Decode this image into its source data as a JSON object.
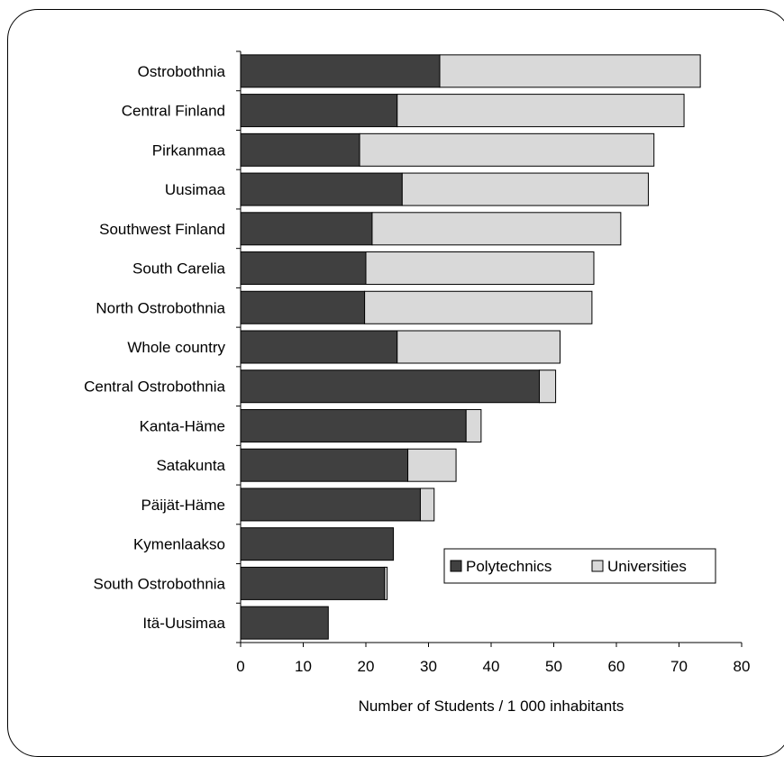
{
  "chart_data": {
    "type": "bar",
    "orientation": "horizontal",
    "stacked": true,
    "categories": [
      "Ostrobothnia",
      "Central Finland",
      "Pirkanmaa",
      "Uusimaa",
      "Southwest Finland",
      "South Carelia",
      "North Ostrobothnia",
      "Whole country",
      "Central Ostrobothnia",
      "Kanta-Häme",
      "Satakunta",
      "Päijät-Häme",
      "Kymenlaakso",
      "South Ostrobothnia",
      "Itä-Uusimaa"
    ],
    "series": [
      {
        "name": "Polytechnics",
        "color": "#404040",
        "values": [
          31.8,
          25.0,
          19.0,
          25.8,
          21.0,
          20.0,
          19.8,
          25.0,
          47.7,
          36.0,
          26.7,
          28.7,
          24.4,
          23.0,
          14.0
        ]
      },
      {
        "name": "Universities",
        "color": "#d9d9d9",
        "values": [
          41.6,
          45.8,
          47.0,
          39.3,
          39.7,
          36.4,
          36.3,
          26.0,
          2.6,
          2.4,
          7.7,
          2.2,
          0.0,
          0.4,
          0.0
        ]
      }
    ],
    "xlabel": "Number of Students / 1 000 inhabitants",
    "xlim": [
      0,
      80
    ],
    "xticks": [
      "0",
      "10",
      "20",
      "30",
      "40",
      "50",
      "60",
      "70",
      "80"
    ],
    "grid": false,
    "legend_position": "lower-right"
  }
}
